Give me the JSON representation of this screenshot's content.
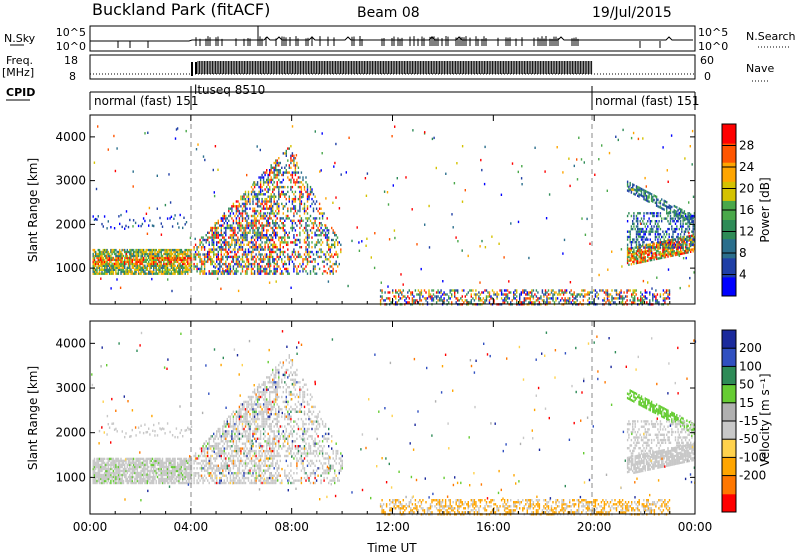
{
  "header": {
    "station": "Buckland Park (fitACF)",
    "beam": "Beam 08",
    "date": "19/Jul/2015"
  },
  "labels": {
    "nsky": "N.Sky",
    "nsearch": "N.Search",
    "freq_line1": "Freq.",
    "freq_line2": "[MHz]",
    "nave": "Nave",
    "cpid": "CPID",
    "nsky_top": "10^5",
    "nsky_bottom": "10^0",
    "nsearch_top": "10^5",
    "nsearch_bottom": "10^0",
    "freq_top": "18",
    "freq_bottom": "8",
    "nave_top": "60",
    "nave_bottom": "0",
    "xlabel": "Time UT",
    "ylabel": "Slant Range [km]",
    "power_label": "Power [dB]",
    "velocity_label": "Velocity [m s⁻¹]"
  },
  "cpid_segments": [
    {
      "label": "normal (fast) 151",
      "start": 0,
      "end": 4
    },
    {
      "label": "ltuseq 8510",
      "start": 4,
      "end": 20
    },
    {
      "label": "normal (fast) 151",
      "start": 20,
      "end": 24
    }
  ],
  "colors": {
    "power_scale": [
      "#0000ff",
      "#1f3fa6",
      "#2a6e8c",
      "#2e8b57",
      "#4aa84a",
      "#d4c200",
      "#ffa500",
      "#ff5500",
      "#ff0000"
    ],
    "velocity_scale": [
      "#ff0000",
      "#ff7700",
      "#ffa500",
      "#ffd24d",
      "#c8c8c8",
      "#b0b0b0",
      "#66cc33",
      "#2e8b57",
      "#3050c0",
      "#1b2a9c"
    ]
  },
  "chart_data": [
    {
      "type": "line",
      "panel": "noise",
      "series": [
        {
          "name": "N.Sky"
        },
        {
          "name": "N.Search"
        }
      ],
      "xlim": [
        0,
        24
      ],
      "ylim_left": [
        "10^0",
        "10^5"
      ],
      "ylim_right": [
        "10^0",
        "10^5"
      ]
    },
    {
      "type": "line",
      "panel": "frequency",
      "series": [
        {
          "name": "Freq."
        },
        {
          "name": "Nave"
        }
      ],
      "xlim": [
        0,
        24
      ],
      "ylim_left": [
        8,
        18
      ],
      "ylim_right": [
        0,
        60
      ]
    },
    {
      "type": "heatmap",
      "panel": "power",
      "xlim": [
        0,
        24
      ],
      "ylim": [
        180,
        4500
      ],
      "x_ticks": [
        "00:00",
        "04:00",
        "08:00",
        "12:00",
        "16:00",
        "20:00",
        "00:00"
      ],
      "y_ticks": [
        1000,
        2000,
        3000,
        4000
      ],
      "colorbar_ticks": [
        4,
        8,
        12,
        16,
        20,
        24,
        28
      ],
      "colorbar_range": [
        0,
        32
      ],
      "colorbar_label": "Power [dB]"
    },
    {
      "type": "heatmap",
      "panel": "velocity",
      "xlim": [
        0,
        24
      ],
      "ylim": [
        180,
        4500
      ],
      "x_ticks": [
        "00:00",
        "04:00",
        "08:00",
        "12:00",
        "16:00",
        "20:00",
        "00:00"
      ],
      "y_ticks": [
        1000,
        2000,
        3000,
        4000
      ],
      "colorbar_ticks": [
        "200",
        "100",
        "50",
        "15",
        "-15",
        "-50",
        "-100",
        "-200"
      ],
      "colorbar_label": "Velocity [m s⁻¹]"
    }
  ]
}
